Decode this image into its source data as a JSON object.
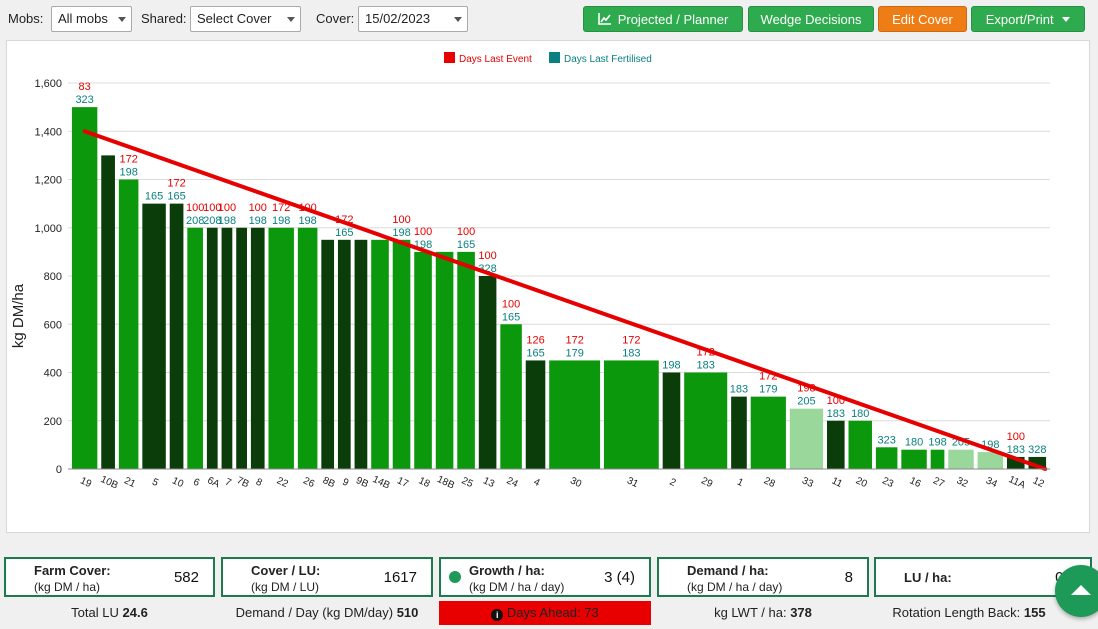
{
  "toolbar": {
    "mobs_label": "Mobs:",
    "mobs_value": "All mobs",
    "shared_label": "Shared:",
    "shared_value": "Select Cover",
    "cover_label": "Cover:",
    "cover_value": "15/02/2023",
    "btn_projected": "Projected / Planner",
    "btn_wedge": "Wedge Decisions",
    "btn_edit": "Edit Cover",
    "btn_export": "Export/Print",
    "colors": {
      "green": "#2eab4e",
      "orange": "#ef7d16"
    }
  },
  "chart_data": {
    "type": "bar",
    "ylabel": "kg DM/ha",
    "ylim": [
      0,
      1600
    ],
    "yticks": [
      "0",
      "200",
      "400",
      "600",
      "800",
      "1,000",
      "1,200",
      "1,400",
      "1,600"
    ],
    "grid": true,
    "legend_position": "top-center",
    "legend": [
      {
        "label": "Days Last Event",
        "color": "#e60000"
      },
      {
        "label": "Days Last Fertilised",
        "color": "#0a8080"
      }
    ],
    "target_line": {
      "color": "#e60000",
      "start_value": 1400,
      "end_value": 0
    },
    "bars": [
      {
        "paddock": "19",
        "value": 1500,
        "shade": "mid",
        "event": "83",
        "fert": "323"
      },
      {
        "paddock": "10B",
        "value": 1300,
        "shade": "dark",
        "event": "",
        "fert": ""
      },
      {
        "paddock": "21",
        "value": 1200,
        "shade": "mid",
        "event": "172",
        "fert": "198"
      },
      {
        "paddock": "5",
        "value": 1100,
        "shade": "dark",
        "event": "",
        "fert": "165"
      },
      {
        "paddock": "10",
        "value": 1100,
        "shade": "dark",
        "event": "172",
        "fert": "165"
      },
      {
        "paddock": "6",
        "value": 1000,
        "shade": "mid",
        "event": "100",
        "fert": "208"
      },
      {
        "paddock": "6A",
        "value": 1000,
        "shade": "dark",
        "event": "100",
        "fert": "208"
      },
      {
        "paddock": "7",
        "value": 1000,
        "shade": "dark",
        "event": "100",
        "fert": "198"
      },
      {
        "paddock": "7B",
        "value": 1000,
        "shade": "dark",
        "event": "",
        "fert": ""
      },
      {
        "paddock": "8",
        "value": 1000,
        "shade": "dark",
        "event": "100",
        "fert": "198"
      },
      {
        "paddock": "22",
        "value": 1000,
        "shade": "mid",
        "event": "172",
        "fert": "198"
      },
      {
        "paddock": "26",
        "value": 1000,
        "shade": "mid",
        "event": "100",
        "fert": "198"
      },
      {
        "paddock": "8B",
        "value": 950,
        "shade": "dark",
        "event": "",
        "fert": ""
      },
      {
        "paddock": "9",
        "value": 950,
        "shade": "dark",
        "event": "172",
        "fert": "165"
      },
      {
        "paddock": "9B",
        "value": 950,
        "shade": "dark",
        "event": "",
        "fert": ""
      },
      {
        "paddock": "14B",
        "value": 950,
        "shade": "mid",
        "event": "",
        "fert": ""
      },
      {
        "paddock": "17",
        "value": 950,
        "shade": "mid",
        "event": "100",
        "fert": "198"
      },
      {
        "paddock": "18",
        "value": 900,
        "shade": "mid",
        "event": "100",
        "fert": "198"
      },
      {
        "paddock": "18B",
        "value": 900,
        "shade": "mid",
        "event": "",
        "fert": ""
      },
      {
        "paddock": "25",
        "value": 900,
        "shade": "mid",
        "event": "100",
        "fert": "165"
      },
      {
        "paddock": "13",
        "value": 800,
        "shade": "dark",
        "event": "100",
        "fert": "328"
      },
      {
        "paddock": "24",
        "value": 600,
        "shade": "mid",
        "event": "100",
        "fert": "165"
      },
      {
        "paddock": "4",
        "value": 450,
        "shade": "dark",
        "event": "126",
        "fert": "165"
      },
      {
        "paddock": "30",
        "value": 450,
        "shade": "mid",
        "event": "172",
        "fert": "179"
      },
      {
        "paddock": "31",
        "value": 450,
        "shade": "mid",
        "event": "172",
        "fert": "183"
      },
      {
        "paddock": "2",
        "value": 400,
        "shade": "dark",
        "event": "",
        "fert": "198"
      },
      {
        "paddock": "29",
        "value": 400,
        "shade": "mid",
        "event": "172",
        "fert": "183"
      },
      {
        "paddock": "1",
        "value": 300,
        "shade": "dark",
        "event": "",
        "fert": "183"
      },
      {
        "paddock": "28",
        "value": 300,
        "shade": "mid",
        "event": "172",
        "fert": "179"
      },
      {
        "paddock": "33",
        "value": 250,
        "shade": "light",
        "event": "198",
        "fert": "205"
      },
      {
        "paddock": "11",
        "value": 200,
        "shade": "dark",
        "event": "100",
        "fert": "183"
      },
      {
        "paddock": "20",
        "value": 200,
        "shade": "mid",
        "event": "",
        "fert": "180"
      },
      {
        "paddock": "23",
        "value": 90,
        "shade": "mid",
        "event": "",
        "fert": "323"
      },
      {
        "paddock": "16",
        "value": 80,
        "shade": "mid",
        "event": "",
        "fert": "180"
      },
      {
        "paddock": "27",
        "value": 80,
        "shade": "mid",
        "event": "",
        "fert": "198"
      },
      {
        "paddock": "32",
        "value": 80,
        "shade": "light",
        "event": "",
        "fert": "205"
      },
      {
        "paddock": "34",
        "value": 70,
        "shade": "light",
        "event": "",
        "fert": "198"
      },
      {
        "paddock": "11A",
        "value": 50,
        "shade": "dark",
        "event": "100",
        "fert": "183"
      },
      {
        "paddock": "12",
        "value": 50,
        "shade": "dark",
        "event": "",
        "fert": "328"
      }
    ],
    "shade_colors": {
      "dark": "#0a3d0a",
      "mid": "#0c980c",
      "light": "#9ad79a"
    }
  },
  "stats": {
    "farm_cover": {
      "title": "Farm Cover:",
      "sub": "(kg DM / ha)",
      "value": "582"
    },
    "cover_lu": {
      "title": "Cover / LU:",
      "sub": "(kg DM / LU)",
      "value": "1617"
    },
    "growth": {
      "title": "Growth / ha:",
      "sub": "(kg DM / ha / day)",
      "value": "3 (4)"
    },
    "demand": {
      "title": "Demand / ha:",
      "sub": "(kg DM / ha / day)",
      "value": "8"
    },
    "lu_ha": {
      "title": "LU / ha:",
      "value": "0.3"
    }
  },
  "subrow": {
    "total_lu_label": "Total LU",
    "total_lu_value": "24.6",
    "demand_day_label": "Demand / Day (kg DM/day)",
    "demand_day_value": "510",
    "days_ahead_label": "Days Ahead:",
    "days_ahead_value": "73",
    "lwt_label": "kg LWT / ha:",
    "lwt_value": "378",
    "rotation_label": "Rotation Length Back:",
    "rotation_value": "155"
  }
}
